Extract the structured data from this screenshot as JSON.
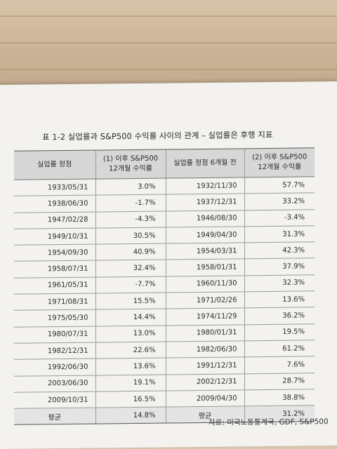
{
  "table": {
    "title": "표 1-2 실업률과 S&P500 수익률 사이의 관계 – 실업률은 후행 지표",
    "headers": [
      "실업률 정점",
      "(1) 이후 S&P500\n12개월 수익률",
      "실업률 정점 6개월 전",
      "(2) 이후 S&P500\n12개월 수익률"
    ],
    "rows": [
      [
        "1933/05/31",
        "3.0%",
        "1932/11/30",
        "57.7%"
      ],
      [
        "1938/06/30",
        "-1.7%",
        "1937/12/31",
        "33.2%"
      ],
      [
        "1947/02/28",
        "-4.3%",
        "1946/08/30",
        "-3.4%"
      ],
      [
        "1949/10/31",
        "30.5%",
        "1949/04/30",
        "31.3%"
      ],
      [
        "1954/09/30",
        "40.9%",
        "1954/03/31",
        "42.3%"
      ],
      [
        "1958/07/31",
        "32.4%",
        "1958/01/31",
        "37.9%"
      ],
      [
        "1961/05/31",
        "-7.7%",
        "1960/11/30",
        "32.3%"
      ],
      [
        "1971/08/31",
        "15.5%",
        "1971/02/26",
        "13.6%"
      ],
      [
        "1975/05/30",
        "14.4%",
        "1974/11/29",
        "36.2%"
      ],
      [
        "1980/07/31",
        "13.0%",
        "1980/01/31",
        "19.5%"
      ],
      [
        "1982/12/31",
        "22.6%",
        "1982/06/30",
        "61.2%"
      ],
      [
        "1992/06/30",
        "13.6%",
        "1991/12/31",
        "7.6%"
      ],
      [
        "2003/06/30",
        "19.1%",
        "2002/12/31",
        "28.7%"
      ],
      [
        "2009/10/31",
        "16.5%",
        "2009/04/30",
        "38.8%"
      ]
    ],
    "average": [
      "평균",
      "14.8%",
      "평균",
      "31.2%"
    ]
  },
  "source": "자료: 미국노동통계국, GDF, S&P500"
}
